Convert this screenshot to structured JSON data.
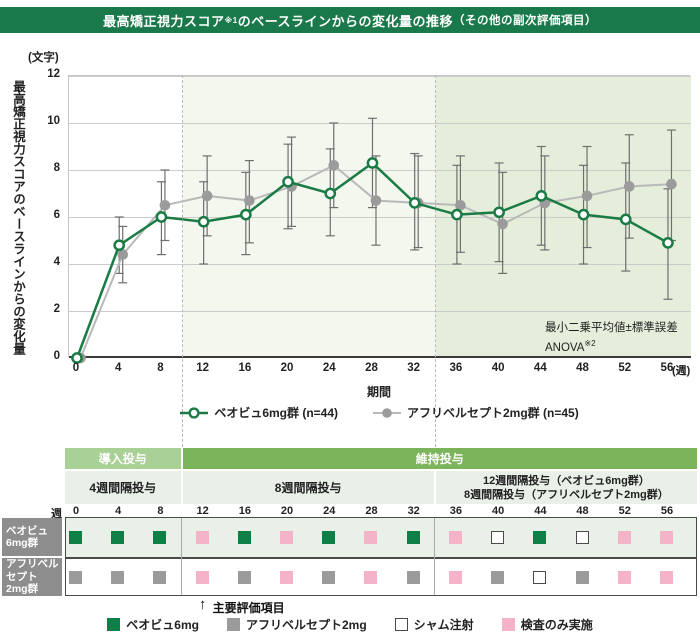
{
  "title": {
    "main": "最高矯正視力スコア",
    "sup": "※1",
    "rest": "のベースラインからの変化量の推移",
    "paren": "（その他の副次評価項目）"
  },
  "chart_data": {
    "type": "line",
    "unit_label": "(文字)",
    "ylabel": "最高矯正視力スコアのベースラインからの変化量",
    "xlabel": "期間",
    "x_unit": "(週)",
    "ylim": [
      0,
      12
    ],
    "yticks": [
      0,
      2,
      4,
      6,
      8,
      10,
      12
    ],
    "x_weeks": [
      0,
      4,
      8,
      12,
      16,
      20,
      24,
      28,
      32,
      36,
      40,
      44,
      48,
      52,
      56
    ],
    "series": [
      {
        "name": "ベオビュ6mg群",
        "n": "(n=44)",
        "color": "#1b7b45",
        "marker": "open-circle",
        "values": [
          0,
          4.8,
          6.0,
          5.8,
          6.1,
          7.5,
          7.0,
          8.3,
          6.6,
          6.1,
          6.2,
          6.9,
          6.1,
          5.9,
          4.9
        ],
        "err_low": [
          null,
          3.6,
          4.4,
          4.0,
          4.4,
          5.5,
          5.2,
          6.4,
          4.6,
          4.0,
          4.1,
          4.8,
          4.0,
          3.7,
          2.5
        ],
        "err_high": [
          null,
          6.0,
          7.5,
          7.5,
          7.9,
          9.1,
          8.9,
          10.2,
          8.7,
          8.2,
          8.3,
          9.0,
          8.2,
          8.3,
          7.2
        ]
      },
      {
        "name": "アフリベルセプト2mg群",
        "n": "(n=45)",
        "color": "#9b9b9b",
        "marker": "filled-circle",
        "values": [
          0,
          4.4,
          6.5,
          6.9,
          6.7,
          7.3,
          8.2,
          6.7,
          6.6,
          6.5,
          5.7,
          6.6,
          6.9,
          7.3,
          7.4
        ],
        "err_low": [
          null,
          3.2,
          5.0,
          5.2,
          4.9,
          5.6,
          6.4,
          4.8,
          4.7,
          4.5,
          3.6,
          4.6,
          4.7,
          5.1,
          5.0
        ],
        "err_high": [
          null,
          5.6,
          8.0,
          8.6,
          8.4,
          9.4,
          10.0,
          8.6,
          8.6,
          8.6,
          7.9,
          8.6,
          9.0,
          9.5,
          9.7
        ]
      }
    ],
    "zones": [
      {
        "from_week": 0,
        "to_week": 10,
        "color": "#ffffff"
      },
      {
        "from_week": 10,
        "to_week": 34,
        "color": "#f3f7ee"
      },
      {
        "from_week": 34,
        "to_week": 58.2,
        "color": "#e5eeda"
      }
    ],
    "annotation": {
      "line1": "最小二乗平均値±標準誤差",
      "line2": "ANOVA",
      "line2_sup": "※2"
    },
    "legend_position": "bottom",
    "grid": true
  },
  "dosing_table": {
    "band_induction": "導入投与",
    "band_maintenance": "維持投与",
    "interval_1": "4週間隔投与",
    "interval_2": "8週間隔投与",
    "interval_3_line1": "12週間隔投与（ベオビュ6mg群）",
    "interval_3_line2": "8週間隔投与（アフリベルセプト2mg群）",
    "week_header": "週",
    "weeks": [
      0,
      4,
      8,
      12,
      16,
      20,
      24,
      28,
      32,
      36,
      40,
      44,
      48,
      52,
      56
    ],
    "rows": [
      {
        "label_line1": "ベオビュ",
        "label_line2": "6mg群",
        "cells": [
          "beovu",
          "beovu",
          "beovu",
          "exam",
          "beovu",
          "exam",
          "beovu",
          "exam",
          "beovu",
          "exam",
          "sham",
          "beovu",
          "sham",
          "exam",
          "exam"
        ]
      },
      {
        "label_line1": "アフリベルセプト",
        "label_line2": "2mg群",
        "cells": [
          "afl",
          "afl",
          "afl",
          "exam",
          "afl",
          "exam",
          "afl",
          "exam",
          "afl",
          "exam",
          "afl",
          "sham",
          "afl",
          "exam",
          "exam"
        ]
      }
    ]
  },
  "primary_endpoint": {
    "arrow": "↑",
    "label": "主要評価項目",
    "week": 12
  },
  "square_legend": [
    {
      "type": "beovu",
      "label": "ベオビュ6mg"
    },
    {
      "type": "afl",
      "label": "アフリベルセプト2mg"
    },
    {
      "type": "sham",
      "label": "シャム注射"
    },
    {
      "type": "exam",
      "label": "検査のみ実施"
    }
  ],
  "square_colors": {
    "beovu": "#0d8048",
    "afl": "#9b9b9b",
    "sham": "#ffffff",
    "exam": "#f4b3c9"
  },
  "colors": {
    "title_bar": "#19794a",
    "zone_mid": "#f3f7ee",
    "zone_late": "#e5eeda",
    "band_light": "#a9d095",
    "band_mid": "#7cb45c",
    "row1_bg": "#e9f0e8",
    "label_box": "#8d8d8d",
    "grid": "#cccccc",
    "error_bar": "#6f6f6f",
    "gray_line": "#b9b9b9",
    "green_line": "#1b7b45"
  }
}
